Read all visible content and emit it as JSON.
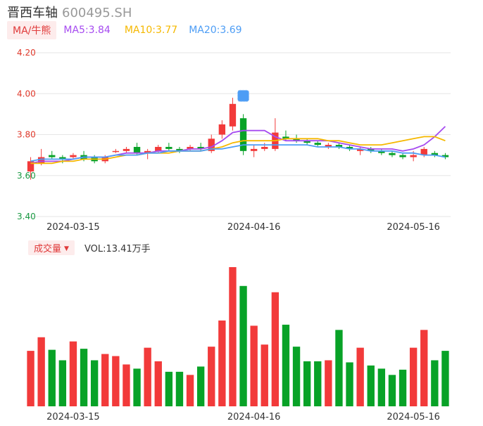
{
  "header": {
    "name": "晋西车轴",
    "code": "600495.SH"
  },
  "ma": {
    "button": "MA/牛熊",
    "ma5": "MA5:3.84",
    "ma10": "MA10:3.77",
    "ma20": "MA20:3.69"
  },
  "volume": {
    "button": "成交量",
    "label": "VOL:13.41万手"
  },
  "colors": {
    "up": "#f23a3a",
    "down": "#08a227",
    "ma5": "#a64bf0",
    "ma10": "#f5b800",
    "ma20": "#4d9df5",
    "grid": "#e6e6e6"
  },
  "chart_data": {
    "type": "candlestick",
    "ylim": [
      3.4,
      4.2
    ],
    "yticks": [
      "4.20",
      "4.00",
      "3.80",
      "3.60",
      "3.40"
    ],
    "xticks": [
      "2024-03-15",
      "2024-04-16",
      "2024-05-16"
    ],
    "xtick_index": [
      4,
      21,
      36
    ],
    "bars": [
      {
        "o": 3.62,
        "h": 3.69,
        "l": 3.58,
        "c": 3.67,
        "v": 5.3
      },
      {
        "o": 3.66,
        "h": 3.73,
        "l": 3.65,
        "c": 3.69,
        "v": 6.6
      },
      {
        "o": 3.7,
        "h": 3.72,
        "l": 3.68,
        "c": 3.69,
        "v": 5.4
      },
      {
        "o": 3.69,
        "h": 3.7,
        "l": 3.66,
        "c": 3.68,
        "v": 4.4
      },
      {
        "o": 3.69,
        "h": 3.71,
        "l": 3.68,
        "c": 3.7,
        "v": 6.2
      },
      {
        "o": 3.7,
        "h": 3.72,
        "l": 3.67,
        "c": 3.68,
        "v": 5.5
      },
      {
        "o": 3.69,
        "h": 3.7,
        "l": 3.66,
        "c": 3.67,
        "v": 4.4
      },
      {
        "o": 3.67,
        "h": 3.7,
        "l": 3.66,
        "c": 3.69,
        "v": 5.0
      },
      {
        "o": 3.72,
        "h": 3.73,
        "l": 3.71,
        "c": 3.72,
        "v": 4.8
      },
      {
        "o": 3.72,
        "h": 3.74,
        "l": 3.71,
        "c": 3.73,
        "v": 4.0
      },
      {
        "o": 3.74,
        "h": 3.76,
        "l": 3.7,
        "c": 3.71,
        "v": 3.6
      },
      {
        "o": 3.71,
        "h": 3.73,
        "l": 3.68,
        "c": 3.72,
        "v": 5.6
      },
      {
        "o": 3.72,
        "h": 3.75,
        "l": 3.71,
        "c": 3.74,
        "v": 4.3
      },
      {
        "o": 3.74,
        "h": 3.76,
        "l": 3.72,
        "c": 3.73,
        "v": 3.3
      },
      {
        "o": 3.73,
        "h": 3.74,
        "l": 3.71,
        "c": 3.72,
        "v": 3.3
      },
      {
        "o": 3.73,
        "h": 3.75,
        "l": 3.72,
        "c": 3.74,
        "v": 3.0
      },
      {
        "o": 3.74,
        "h": 3.76,
        "l": 3.72,
        "c": 3.73,
        "v": 3.8
      },
      {
        "o": 3.72,
        "h": 3.8,
        "l": 3.71,
        "c": 3.78,
        "v": 5.7
      },
      {
        "o": 3.8,
        "h": 3.87,
        "l": 3.78,
        "c": 3.85,
        "v": 8.2
      },
      {
        "o": 3.84,
        "h": 3.98,
        "l": 3.82,
        "c": 3.95,
        "v": 13.3
      },
      {
        "o": 3.88,
        "h": 3.9,
        "l": 3.7,
        "c": 3.72,
        "v": 11.5
      },
      {
        "o": 3.72,
        "h": 3.75,
        "l": 3.69,
        "c": 3.73,
        "v": 7.7
      },
      {
        "o": 3.73,
        "h": 3.76,
        "l": 3.72,
        "c": 3.74,
        "v": 5.9
      },
      {
        "o": 3.73,
        "h": 3.88,
        "l": 3.72,
        "c": 3.81,
        "v": 10.9
      },
      {
        "o": 3.79,
        "h": 3.82,
        "l": 3.77,
        "c": 3.78,
        "v": 7.8
      },
      {
        "o": 3.78,
        "h": 3.8,
        "l": 3.76,
        "c": 3.77,
        "v": 5.7
      },
      {
        "o": 3.77,
        "h": 3.78,
        "l": 3.75,
        "c": 3.76,
        "v": 4.3
      },
      {
        "o": 3.76,
        "h": 3.77,
        "l": 3.74,
        "c": 3.75,
        "v": 4.3
      },
      {
        "o": 3.74,
        "h": 3.76,
        "l": 3.73,
        "c": 3.75,
        "v": 4.4
      },
      {
        "o": 3.75,
        "h": 3.76,
        "l": 3.73,
        "c": 3.74,
        "v": 7.3
      },
      {
        "o": 3.74,
        "h": 3.75,
        "l": 3.72,
        "c": 3.73,
        "v": 4.2
      },
      {
        "o": 3.72,
        "h": 3.74,
        "l": 3.7,
        "c": 3.73,
        "v": 5.6
      },
      {
        "o": 3.73,
        "h": 3.74,
        "l": 3.71,
        "c": 3.72,
        "v": 3.9
      },
      {
        "o": 3.72,
        "h": 3.73,
        "l": 3.7,
        "c": 3.71,
        "v": 3.6
      },
      {
        "o": 3.71,
        "h": 3.72,
        "l": 3.69,
        "c": 3.7,
        "v": 3.0
      },
      {
        "o": 3.7,
        "h": 3.71,
        "l": 3.68,
        "c": 3.69,
        "v": 3.5
      },
      {
        "o": 3.69,
        "h": 3.72,
        "l": 3.67,
        "c": 3.7,
        "v": 5.6
      },
      {
        "o": 3.7,
        "h": 3.74,
        "l": 3.69,
        "c": 3.73,
        "v": 7.3
      },
      {
        "o": 3.71,
        "h": 3.72,
        "l": 3.69,
        "c": 3.7,
        "v": 4.4
      },
      {
        "o": 3.7,
        "h": 3.71,
        "l": 3.68,
        "c": 3.69,
        "v": 5.3
      }
    ],
    "series": [
      {
        "name": "MA5",
        "values": [
          3.66,
          3.67,
          3.67,
          3.67,
          3.68,
          3.69,
          3.69,
          3.69,
          3.7,
          3.71,
          3.71,
          3.71,
          3.72,
          3.72,
          3.72,
          3.73,
          3.73,
          3.74,
          3.77,
          3.81,
          3.82,
          3.82,
          3.82,
          3.79,
          3.77,
          3.77,
          3.77,
          3.77,
          3.77,
          3.76,
          3.75,
          3.74,
          3.73,
          3.73,
          3.73,
          3.72,
          3.73,
          3.75,
          3.79,
          3.84
        ]
      },
      {
        "name": "MA10",
        "values": [
          3.66,
          3.66,
          3.66,
          3.67,
          3.67,
          3.68,
          3.68,
          3.68,
          3.69,
          3.7,
          3.7,
          3.71,
          3.71,
          3.71,
          3.72,
          3.72,
          3.72,
          3.73,
          3.74,
          3.76,
          3.77,
          3.77,
          3.77,
          3.77,
          3.78,
          3.78,
          3.78,
          3.78,
          3.77,
          3.77,
          3.76,
          3.75,
          3.75,
          3.75,
          3.76,
          3.77,
          3.78,
          3.79,
          3.79,
          3.77
        ]
      },
      {
        "name": "MA20",
        "values": [
          3.67,
          3.68,
          3.68,
          3.68,
          3.68,
          3.69,
          3.69,
          3.69,
          3.7,
          3.7,
          3.7,
          3.71,
          3.71,
          3.72,
          3.72,
          3.72,
          3.72,
          3.73,
          3.73,
          3.74,
          3.75,
          3.75,
          3.75,
          3.75,
          3.75,
          3.75,
          3.75,
          3.74,
          3.74,
          3.74,
          3.73,
          3.73,
          3.72,
          3.72,
          3.72,
          3.71,
          3.71,
          3.7,
          3.7,
          3.69
        ]
      }
    ]
  }
}
